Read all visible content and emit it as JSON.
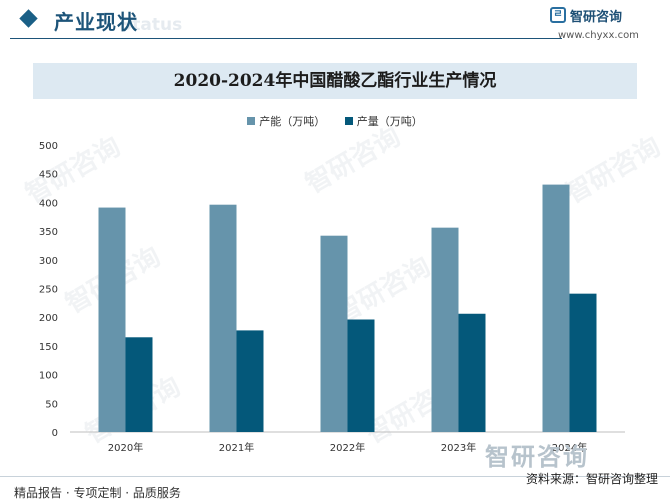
{
  "header": {
    "section_title": "产业现状",
    "section_subtitle": "Status",
    "brand_name": "智研咨询",
    "brand_url": "www.chyxx.com"
  },
  "footer": {
    "left_text": "精品报告 · 专项定制 · 品质服务",
    "source_text": "资料来源：智研咨询整理",
    "brand_big": "智研咨询"
  },
  "watermark": "智研咨询",
  "colors": {
    "capacity": "#6694ab",
    "output": "#04587a",
    "accent": "#1d5479"
  },
  "chart_data": {
    "type": "bar",
    "title": "2020-2024年中国醋酸乙酯行业生产情况",
    "categories": [
      "2020年",
      "2021年",
      "2022年",
      "2023年",
      "2024年"
    ],
    "series": [
      {
        "name": "产能（万吨）",
        "values": [
          391,
          396,
          342,
          356,
          431
        ]
      },
      {
        "name": "产量（万吨）",
        "values": [
          165,
          177,
          196,
          206,
          241
        ]
      }
    ],
    "ylim": [
      0,
      500
    ],
    "yticks": [
      0,
      50,
      100,
      150,
      200,
      250,
      300,
      350,
      400,
      450,
      500
    ],
    "legend": "top-center",
    "grid": false
  }
}
